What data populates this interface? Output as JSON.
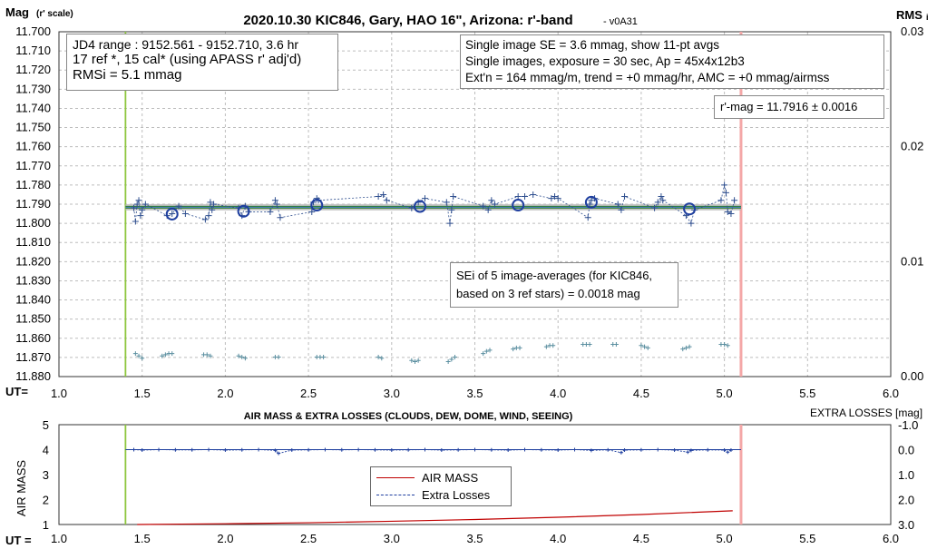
{
  "chart_data": [
    {
      "type": "scatter",
      "title": "2020.10.30 KIC846, Gary, HAO 16\", Arizona: r'-band",
      "version": "- v0A31",
      "ylabel": "Mag",
      "ylabel_sub": "(r' scale)",
      "y2label": "RMS",
      "y2label_sub": "i",
      "xlabel": "UT=",
      "xlim": [
        1.0,
        6.0
      ],
      "ylim": [
        11.88,
        11.7
      ],
      "y2lim": [
        0.0,
        0.03
      ],
      "x_ticks": [
        "1.0",
        "1.5",
        "2.0",
        "2.5",
        "3.0",
        "3.5",
        "4.0",
        "4.5",
        "5.0",
        "5.5",
        "6.0"
      ],
      "y_ticks": [
        "11.700",
        "11.710",
        "11.720",
        "11.730",
        "11.740",
        "11.750",
        "11.760",
        "11.770",
        "11.780",
        "11.790",
        "11.800",
        "11.810",
        "11.820",
        "11.830",
        "11.840",
        "11.850",
        "11.860",
        "11.870",
        "11.880"
      ],
      "y2_ticks": [
        "0.03",
        "0.02",
        "0.01",
        "0.00"
      ],
      "grid": true,
      "vlines": [
        {
          "x": 1.4,
          "color": "#8dc63f"
        },
        {
          "x": 5.1,
          "color": "#f4a7a7"
        }
      ],
      "mean_mag": 11.7916,
      "trend_band": [
        11.7912,
        11.792
      ],
      "series": [
        {
          "kind": "single",
          "color": "#2f4f8f",
          "x": [
            1.45,
            1.46,
            1.47,
            1.48,
            1.49,
            1.5,
            1.52,
            1.65,
            1.68,
            1.72,
            1.76,
            1.88,
            1.9,
            1.91,
            1.92,
            1.93,
            2.08,
            2.1,
            2.12,
            2.14,
            2.27,
            2.3,
            2.31,
            2.33,
            2.52,
            2.53,
            2.55,
            2.56,
            2.92,
            2.95,
            2.97,
            3.12,
            3.16,
            3.2,
            3.33,
            3.35,
            3.36,
            3.37,
            3.55,
            3.58,
            3.6,
            3.62,
            3.76,
            3.8,
            3.85,
            3.96,
            3.98,
            4.0,
            4.18,
            4.19,
            4.2,
            4.22,
            4.36,
            4.38,
            4.4,
            4.58,
            4.6,
            4.62,
            4.63,
            4.77,
            4.8,
            4.82,
            4.98,
            5.0,
            5.01,
            5.02,
            5.04,
            5.06
          ],
          "y": [
            11.792,
            11.799,
            11.79,
            11.788,
            11.796,
            11.793,
            11.79,
            11.796,
            11.795,
            11.791,
            11.795,
            11.798,
            11.796,
            11.789,
            11.793,
            11.79,
            11.792,
            11.796,
            11.791,
            11.794,
            11.794,
            11.788,
            11.79,
            11.797,
            11.794,
            11.789,
            11.787,
            11.788,
            11.786,
            11.785,
            11.788,
            11.792,
            11.789,
            11.787,
            11.789,
            11.8,
            11.793,
            11.786,
            11.791,
            11.793,
            11.788,
            11.79,
            11.786,
            11.786,
            11.785,
            11.787,
            11.786,
            11.787,
            11.797,
            11.79,
            11.788,
            11.787,
            11.79,
            11.793,
            11.786,
            11.792,
            11.789,
            11.786,
            11.788,
            11.796,
            11.8,
            11.793,
            11.788,
            11.78,
            11.784,
            11.794,
            11.795,
            11.788
          ]
        },
        {
          "kind": "average",
          "color": "#1f3f9f",
          "x": [
            1.68,
            2.11,
            2.55,
            3.17,
            3.76,
            4.2,
            4.79
          ],
          "y": [
            11.7952,
            11.7937,
            11.7905,
            11.7912,
            11.7905,
            11.789,
            11.7925
          ]
        },
        {
          "kind": "rms",
          "color": "#5b8fa0",
          "x": [
            1.46,
            1.48,
            1.5,
            1.62,
            1.64,
            1.66,
            1.68,
            1.87,
            1.89,
            1.91,
            2.08,
            2.1,
            2.12,
            2.3,
            2.32,
            2.55,
            2.57,
            2.59,
            2.92,
            2.94,
            3.12,
            3.14,
            3.16,
            3.34,
            3.36,
            3.38,
            3.55,
            3.57,
            3.59,
            3.73,
            3.75,
            3.77,
            3.93,
            3.95,
            3.97,
            4.15,
            4.17,
            4.19,
            4.33,
            4.35,
            4.5,
            4.52,
            4.54,
            4.75,
            4.77,
            4.79,
            4.98,
            5.0,
            5.02
          ],
          "y": [
            0.002,
            0.0018,
            0.0016,
            0.0018,
            0.0019,
            0.002,
            0.002,
            0.0019,
            0.0019,
            0.0018,
            0.0018,
            0.0017,
            0.0016,
            0.0017,
            0.0017,
            0.0017,
            0.0017,
            0.0017,
            0.0017,
            0.0016,
            0.0014,
            0.0013,
            0.0014,
            0.0013,
            0.0015,
            0.0017,
            0.002,
            0.0022,
            0.0023,
            0.0024,
            0.0025,
            0.0025,
            0.0026,
            0.0027,
            0.0027,
            0.0028,
            0.0028,
            0.0028,
            0.0028,
            0.0028,
            0.0027,
            0.0026,
            0.0025,
            0.0024,
            0.0025,
            0.0026,
            0.0028,
            0.0028,
            0.0027
          ]
        }
      ],
      "annotations": {
        "box1": [
          "JD4 range : 9152.561 - 9152.710,  3.6  hr",
          "17 ref *, 15 cal* (using APASS r' adj'd)",
          "RMSi = 5.1 mmag"
        ],
        "box2": [
          "Single image SE = 3.6 mmag, show  11-pt avgs",
          "Single images, exposure = 30 sec, Ap = 45x4x12b3",
          "Ext'n = 164 mmag/m, trend =  +0 mmag/hr, AMC = +0 mmag/airmss"
        ],
        "box3": "r'-mag = 11.7916 ± 0.0016",
        "box4": [
          "SEi of 5 image-averages (for KIC846,",
          "based on 3 ref stars) = 0.0018 mag"
        ]
      }
    },
    {
      "type": "line",
      "title": "AIR MASS & EXTRA LOSSES (CLOUDS, DEW, DOME, WIND, SEEING)",
      "ylabel": "AIR MASS",
      "y2label": "EXTRA LOSSES [mag]",
      "xlabel": "UT =",
      "xlim": [
        1.0,
        6.0
      ],
      "ylim": [
        1,
        5
      ],
      "y2lim": [
        3.0,
        -1.0
      ],
      "x_ticks": [
        "1.0",
        "1.5",
        "2.0",
        "2.5",
        "3.0",
        "3.5",
        "4.0",
        "4.5",
        "5.0",
        "5.5",
        "6.0"
      ],
      "y_ticks": [
        "1",
        "2",
        "3",
        "4",
        "5"
      ],
      "y2_ticks": [
        "-1.0",
        "0.0",
        "1.0",
        "2.0",
        "3.0"
      ],
      "vlines": [
        {
          "x": 1.4,
          "color": "#8dc63f"
        },
        {
          "x": 5.1,
          "color": "#f4a7a7"
        }
      ],
      "legend": [
        "AIR MASS",
        "Extra Losses"
      ],
      "series": [
        {
          "name": "AIR MASS",
          "color": "#c00000",
          "x": [
            1.47,
            2.0,
            2.5,
            3.0,
            3.5,
            4.0,
            4.5,
            5.05
          ],
          "y": [
            1.0,
            1.03,
            1.07,
            1.13,
            1.2,
            1.29,
            1.4,
            1.55
          ]
        },
        {
          "name": "Extra Losses",
          "color": "#1f3f9f",
          "x": [
            1.45,
            1.5,
            1.6,
            1.7,
            1.8,
            1.9,
            2.0,
            2.1,
            2.2,
            2.3,
            2.32,
            2.4,
            2.5,
            2.6,
            2.7,
            2.8,
            2.9,
            3.0,
            3.1,
            3.2,
            3.3,
            3.4,
            3.5,
            3.6,
            3.7,
            3.8,
            3.9,
            4.0,
            4.1,
            4.2,
            4.3,
            4.38,
            4.4,
            4.5,
            4.6,
            4.7,
            4.78,
            4.8,
            4.9,
            5.0,
            5.02,
            5.04
          ],
          "y": [
            0.0,
            0.02,
            0.0,
            0.01,
            0.01,
            0.0,
            0.02,
            0.01,
            0.0,
            0.03,
            0.15,
            0.02,
            0.01,
            0.0,
            0.01,
            0.0,
            0.01,
            0.02,
            0.01,
            0.0,
            0.02,
            0.01,
            0.0,
            0.01,
            0.02,
            0.0,
            0.01,
            0.02,
            0.0,
            0.03,
            0.01,
            0.12,
            0.02,
            0.01,
            0.0,
            0.02,
            0.1,
            0.03,
            0.01,
            0.02,
            0.1,
            0.02
          ]
        }
      ]
    }
  ]
}
